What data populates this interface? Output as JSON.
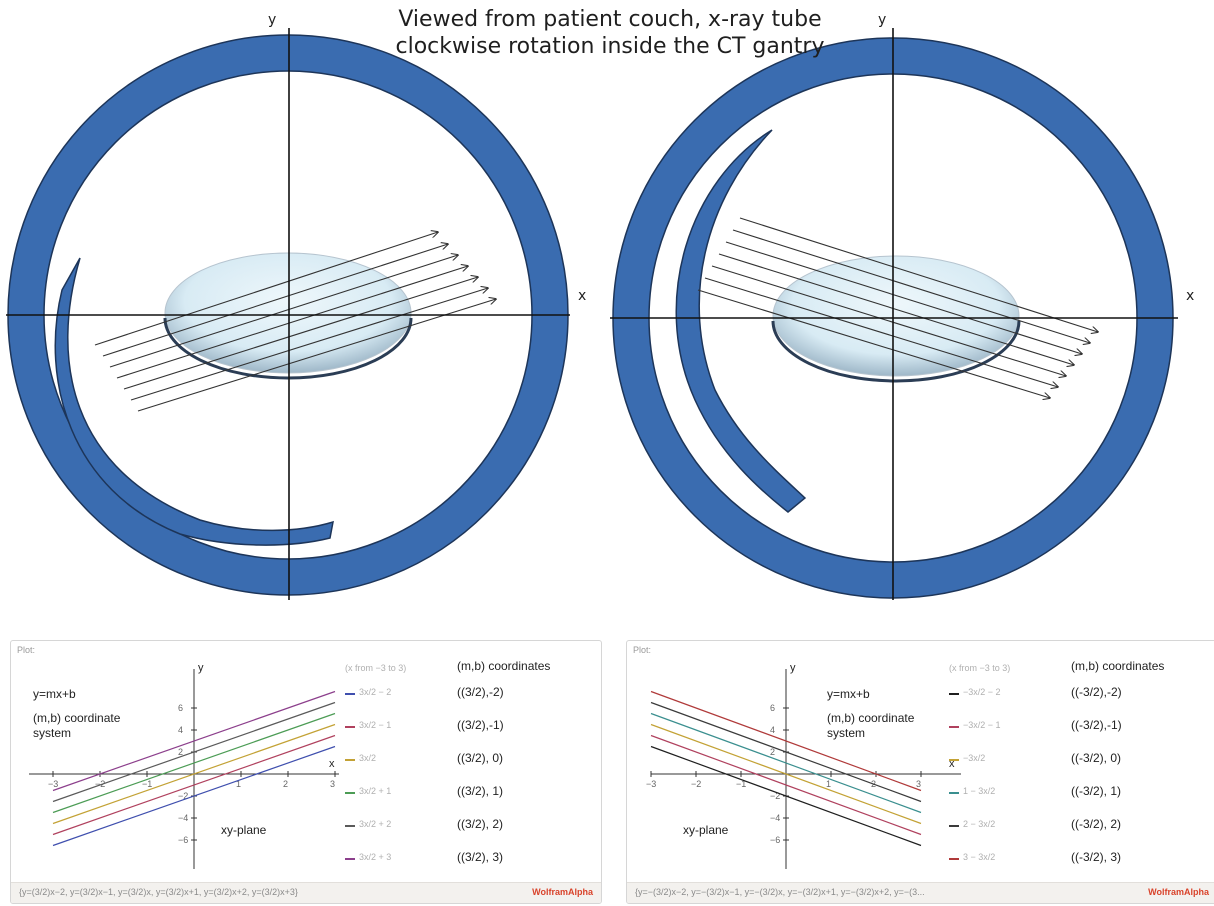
{
  "caption": "Viewed from patient couch, x-ray tube clockwise rotation inside the CT gantry",
  "diagrams": [
    {
      "x_label": "x",
      "y_label": "y"
    },
    {
      "x_label": "x",
      "y_label": "y"
    }
  ],
  "panels": [
    {
      "plot_tag": "Plot:",
      "y_axis_label": "y",
      "x_axis_label": "x",
      "equation_label": "y=mx+b",
      "system_label": "(m,b) coordinate system",
      "plane_label": "xy-plane",
      "x_from": "(x from −3 to 3)",
      "coords_header": "(m,b) coordinates",
      "x_ticks": [
        "−3",
        "−2",
        "−1",
        "1",
        "2",
        "3"
      ],
      "y_ticks": [
        "6",
        "4",
        "2",
        "−2",
        "−4",
        "−6"
      ],
      "legend": [
        {
          "expr": "3x/2 − 2",
          "color": "#3f4fae",
          "coord": "((3/2),-2)"
        },
        {
          "expr": "3x/2 − 1",
          "color": "#b0415e",
          "coord": "((3/2),-1)"
        },
        {
          "expr": "3x/2",
          "color": "#c3a235",
          "coord": "((3/2), 0)"
        },
        {
          "expr": "3x/2 + 1",
          "color": "#4c9c55",
          "coord": "((3/2), 1)"
        },
        {
          "expr": "3x/2 + 2",
          "color": "#5a5a5a",
          "coord": "((3/2), 2)"
        },
        {
          "expr": "3x/2 + 3",
          "color": "#8c3f8c",
          "coord": "((3/2), 3)"
        }
      ],
      "footer_query": "{y=(3/2)x−2, y=(3/2)x−1, y=(3/2)x, y=(3/2)x+1, y=(3/2)x+2, y=(3/2)x+3}",
      "brand": "WolframAlpha"
    },
    {
      "plot_tag": "Plot:",
      "y_axis_label": "y",
      "x_axis_label": "x",
      "equation_label": "y=mx+b",
      "system_label": "(m,b) coordinate system",
      "plane_label": "xy-plane",
      "x_from": "(x from −3 to 3)",
      "coords_header": "(m,b) coordinates",
      "x_ticks": [
        "−3",
        "−2",
        "−1",
        "1",
        "2",
        "3"
      ],
      "y_ticks": [
        "6",
        "4",
        "2",
        "−2",
        "−4",
        "−6"
      ],
      "legend": [
        {
          "expr": "−3x/2 − 2",
          "color": "#1f1f1f",
          "coord": "((-3/2),-2)"
        },
        {
          "expr": "−3x/2 − 1",
          "color": "#b0415e",
          "coord": "((-3/2),-1)"
        },
        {
          "expr": "−3x/2",
          "color": "#c3a235",
          "coord": "((-3/2), 0)"
        },
        {
          "expr": "1 − 3x/2",
          "color": "#3a8f8f",
          "coord": "((-3/2), 1)"
        },
        {
          "expr": "2 − 3x/2",
          "color": "#3b3b3b",
          "coord": "((-3/2), 2)"
        },
        {
          "expr": "3 − 3x/2",
          "color": "#b03a3a",
          "coord": "((-3/2), 3)"
        }
      ],
      "footer_query": "{y=−(3/2)x−2, y=−(3/2)x−1, y=−(3/2)x, y=−(3/2)x+1, y=−(3/2)x+2, y=−(3...",
      "brand": "WolframAlpha"
    }
  ]
}
